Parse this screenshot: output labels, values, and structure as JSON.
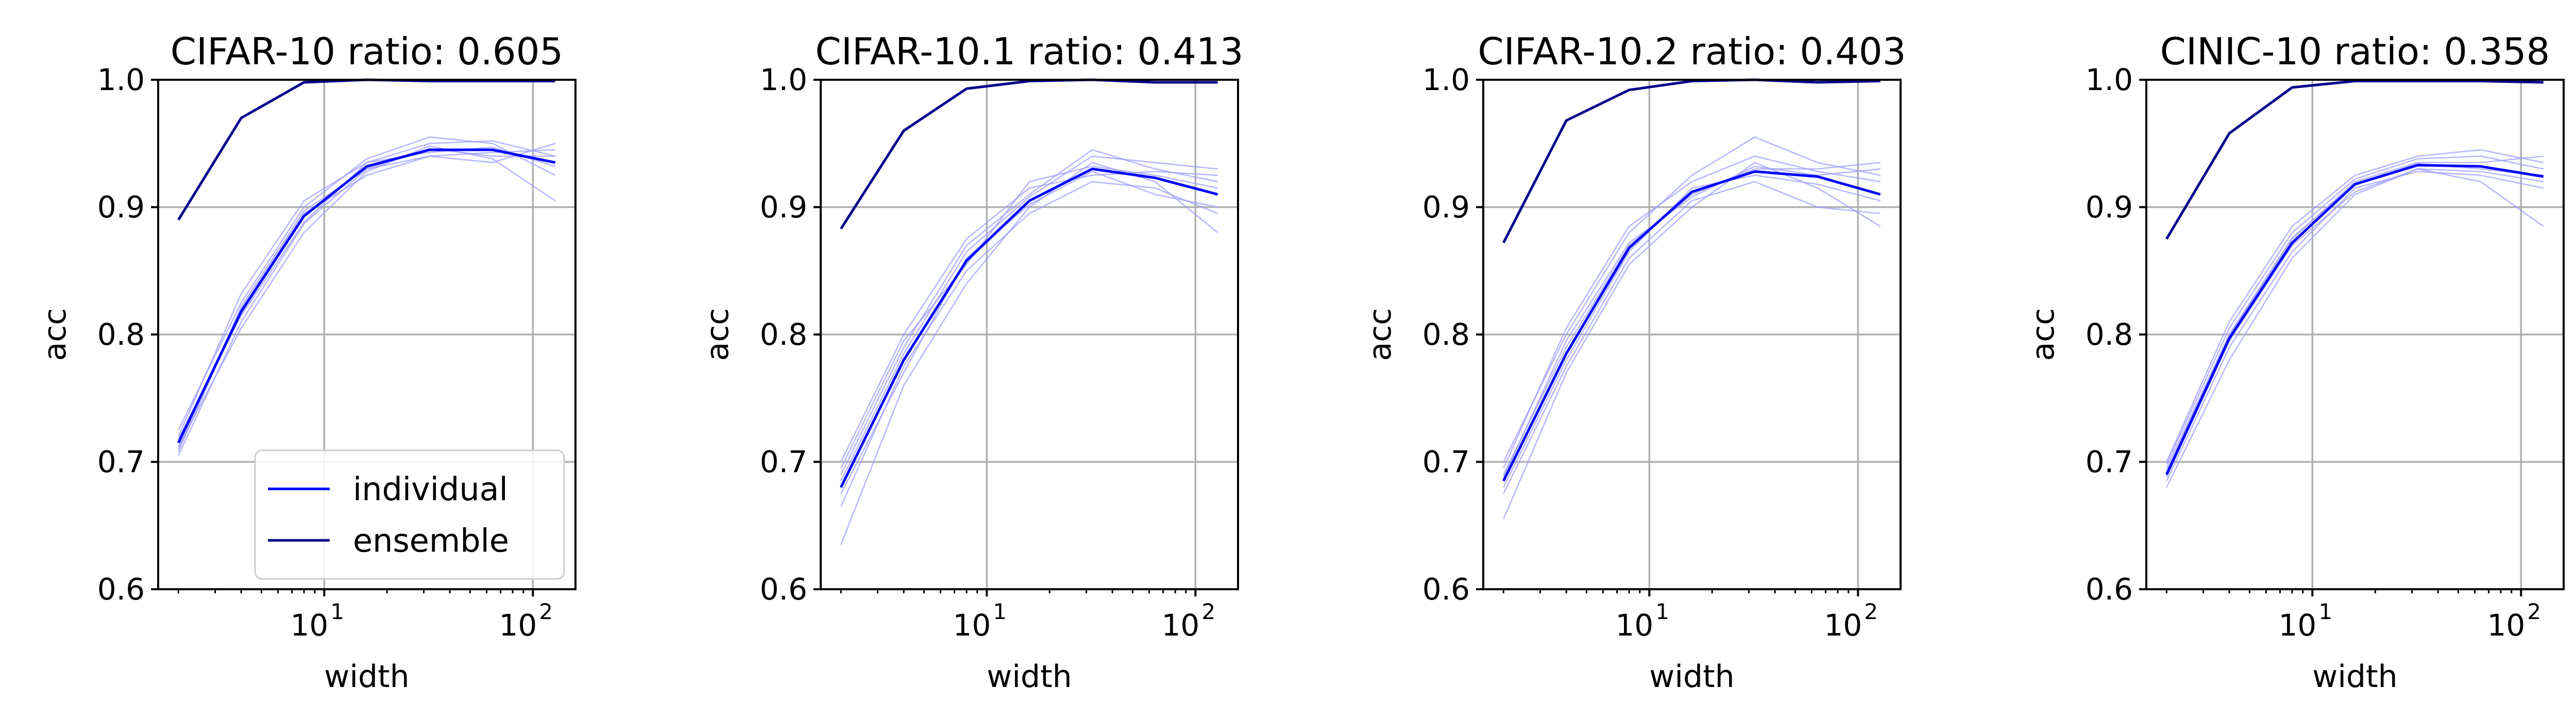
{
  "figure": {
    "colors": {
      "individual": "#0000ff",
      "ensemble": "#00008b",
      "thin_runs": "#9c9cff",
      "grid": "#b0b0b0",
      "axes": "#000000"
    }
  },
  "chart_data": [
    {
      "type": "line",
      "title": "CIFAR-10 ratio: 0.605",
      "xlabel": "width",
      "ylabel": "acc",
      "xscale": "log",
      "xlim": [
        1.6,
        160
      ],
      "ylim": [
        0.6,
        1.0
      ],
      "grid": true,
      "yticks": [
        "0.6",
        "0.7",
        "0.8",
        "0.9",
        "1.0"
      ],
      "xticks": [
        {
          "base": "10",
          "exp": "1",
          "value": 10
        },
        {
          "base": "10",
          "exp": "2",
          "value": 100
        }
      ],
      "legend": {
        "position": "lower right",
        "entries": [
          "individual",
          "ensemble"
        ]
      },
      "x": [
        2,
        4,
        8,
        16,
        32,
        64,
        128
      ],
      "series": [
        {
          "name": "individual",
          "values": [
            0.715,
            0.818,
            0.893,
            0.932,
            0.945,
            0.945,
            0.935
          ]
        },
        {
          "name": "ensemble",
          "values": [
            0.89,
            0.97,
            0.998,
            1.0,
            0.999,
            0.999,
            0.999
          ]
        }
      ],
      "runs": [
        [
          0.705,
          0.81,
          0.887,
          0.93,
          0.94,
          0.935,
          0.95
        ],
        [
          0.72,
          0.832,
          0.905,
          0.935,
          0.95,
          0.952,
          0.94
        ],
        [
          0.712,
          0.805,
          0.88,
          0.928,
          0.948,
          0.938,
          0.905
        ],
        [
          0.725,
          0.825,
          0.9,
          0.938,
          0.955,
          0.95,
          0.925
        ],
        [
          0.708,
          0.82,
          0.895,
          0.925,
          0.94,
          0.943,
          0.945
        ],
        [
          0.718,
          0.815,
          0.888,
          0.935,
          0.943,
          0.947,
          0.932
        ],
        [
          0.71,
          0.822,
          0.897,
          0.93,
          0.946,
          0.94,
          0.94
        ]
      ]
    },
    {
      "type": "line",
      "title": "CIFAR-10.1 ratio: 0.413",
      "xlabel": "width",
      "ylabel": "acc",
      "xscale": "log",
      "xlim": [
        1.6,
        160
      ],
      "ylim": [
        0.6,
        1.0
      ],
      "grid": true,
      "yticks": [
        "0.6",
        "0.7",
        "0.8",
        "0.9",
        "1.0"
      ],
      "xticks": [
        {
          "base": "10",
          "exp": "1",
          "value": 10
        },
        {
          "base": "10",
          "exp": "2",
          "value": 100
        }
      ],
      "x": [
        2,
        4,
        8,
        16,
        32,
        64,
        128
      ],
      "series": [
        {
          "name": "individual",
          "values": [
            0.68,
            0.78,
            0.858,
            0.905,
            0.93,
            0.923,
            0.91
          ]
        },
        {
          "name": "ensemble",
          "values": [
            0.883,
            0.96,
            0.993,
            0.999,
            1.0,
            0.998,
            0.998
          ]
        }
      ],
      "runs": [
        [
          0.635,
          0.76,
          0.84,
          0.9,
          0.935,
          0.92,
          0.88
        ],
        [
          0.69,
          0.79,
          0.87,
          0.91,
          0.945,
          0.93,
          0.92
        ],
        [
          0.7,
          0.8,
          0.875,
          0.915,
          0.925,
          0.928,
          0.925
        ],
        [
          0.665,
          0.775,
          0.85,
          0.895,
          0.92,
          0.915,
          0.895
        ],
        [
          0.685,
          0.785,
          0.865,
          0.908,
          0.94,
          0.935,
          0.93
        ],
        [
          0.675,
          0.77,
          0.86,
          0.902,
          0.928,
          0.91,
          0.9
        ],
        [
          0.695,
          0.795,
          0.855,
          0.92,
          0.932,
          0.925,
          0.915
        ]
      ]
    },
    {
      "type": "line",
      "title": "CIFAR-10.2 ratio: 0.403",
      "xlabel": "width",
      "ylabel": "acc",
      "xscale": "log",
      "xlim": [
        1.6,
        160
      ],
      "ylim": [
        0.6,
        1.0
      ],
      "grid": true,
      "yticks": [
        "0.6",
        "0.7",
        "0.8",
        "0.9",
        "1.0"
      ],
      "xticks": [
        {
          "base": "10",
          "exp": "1",
          "value": 10
        },
        {
          "base": "10",
          "exp": "2",
          "value": 100
        }
      ],
      "x": [
        2,
        4,
        8,
        16,
        32,
        64,
        128
      ],
      "series": [
        {
          "name": "individual",
          "values": [
            0.685,
            0.785,
            0.868,
            0.912,
            0.928,
            0.924,
            0.91
          ]
        },
        {
          "name": "ensemble",
          "values": [
            0.872,
            0.968,
            0.992,
            0.999,
            1.0,
            0.998,
            0.999
          ]
        }
      ],
      "runs": [
        [
          0.655,
          0.77,
          0.855,
          0.9,
          0.935,
          0.915,
          0.885
        ],
        [
          0.7,
          0.8,
          0.88,
          0.925,
          0.955,
          0.935,
          0.925
        ],
        [
          0.69,
          0.79,
          0.87,
          0.91,
          0.93,
          0.93,
          0.935
        ],
        [
          0.675,
          0.775,
          0.86,
          0.905,
          0.92,
          0.9,
          0.895
        ],
        [
          0.695,
          0.805,
          0.885,
          0.92,
          0.94,
          0.928,
          0.92
        ],
        [
          0.68,
          0.78,
          0.865,
          0.915,
          0.925,
          0.918,
          0.905
        ],
        [
          0.688,
          0.795,
          0.872,
          0.908,
          0.932,
          0.925,
          0.93
        ]
      ]
    },
    {
      "type": "line",
      "title": "CINIC-10 ratio: 0.358",
      "xlabel": "width",
      "ylabel": "acc",
      "xscale": "log",
      "xlim": [
        1.6,
        160
      ],
      "ylim": [
        0.6,
        1.0
      ],
      "grid": true,
      "yticks": [
        "0.6",
        "0.7",
        "0.8",
        "0.9",
        "1.0"
      ],
      "xticks": [
        {
          "base": "10",
          "exp": "1",
          "value": 10
        },
        {
          "base": "10",
          "exp": "2",
          "value": 100
        }
      ],
      "x": [
        2,
        4,
        8,
        16,
        32,
        64,
        128
      ],
      "series": [
        {
          "name": "individual",
          "values": [
            0.69,
            0.797,
            0.872,
            0.918,
            0.933,
            0.932,
            0.924
          ]
        },
        {
          "name": "ensemble",
          "values": [
            0.875,
            0.958,
            0.994,
            0.999,
            0.999,
            0.999,
            0.998
          ]
        }
      ],
      "runs": [
        [
          0.68,
          0.78,
          0.86,
          0.91,
          0.93,
          0.92,
          0.885
        ],
        [
          0.7,
          0.81,
          0.885,
          0.925,
          0.94,
          0.945,
          0.935
        ],
        [
          0.695,
          0.8,
          0.875,
          0.92,
          0.935,
          0.935,
          0.94
        ],
        [
          0.685,
          0.79,
          0.865,
          0.915,
          0.928,
          0.925,
          0.915
        ],
        [
          0.698,
          0.805,
          0.88,
          0.922,
          0.938,
          0.94,
          0.93
        ],
        [
          0.688,
          0.795,
          0.87,
          0.912,
          0.93,
          0.928,
          0.92
        ],
        [
          0.692,
          0.8,
          0.876,
          0.918,
          0.934,
          0.93,
          0.925
        ]
      ]
    }
  ]
}
